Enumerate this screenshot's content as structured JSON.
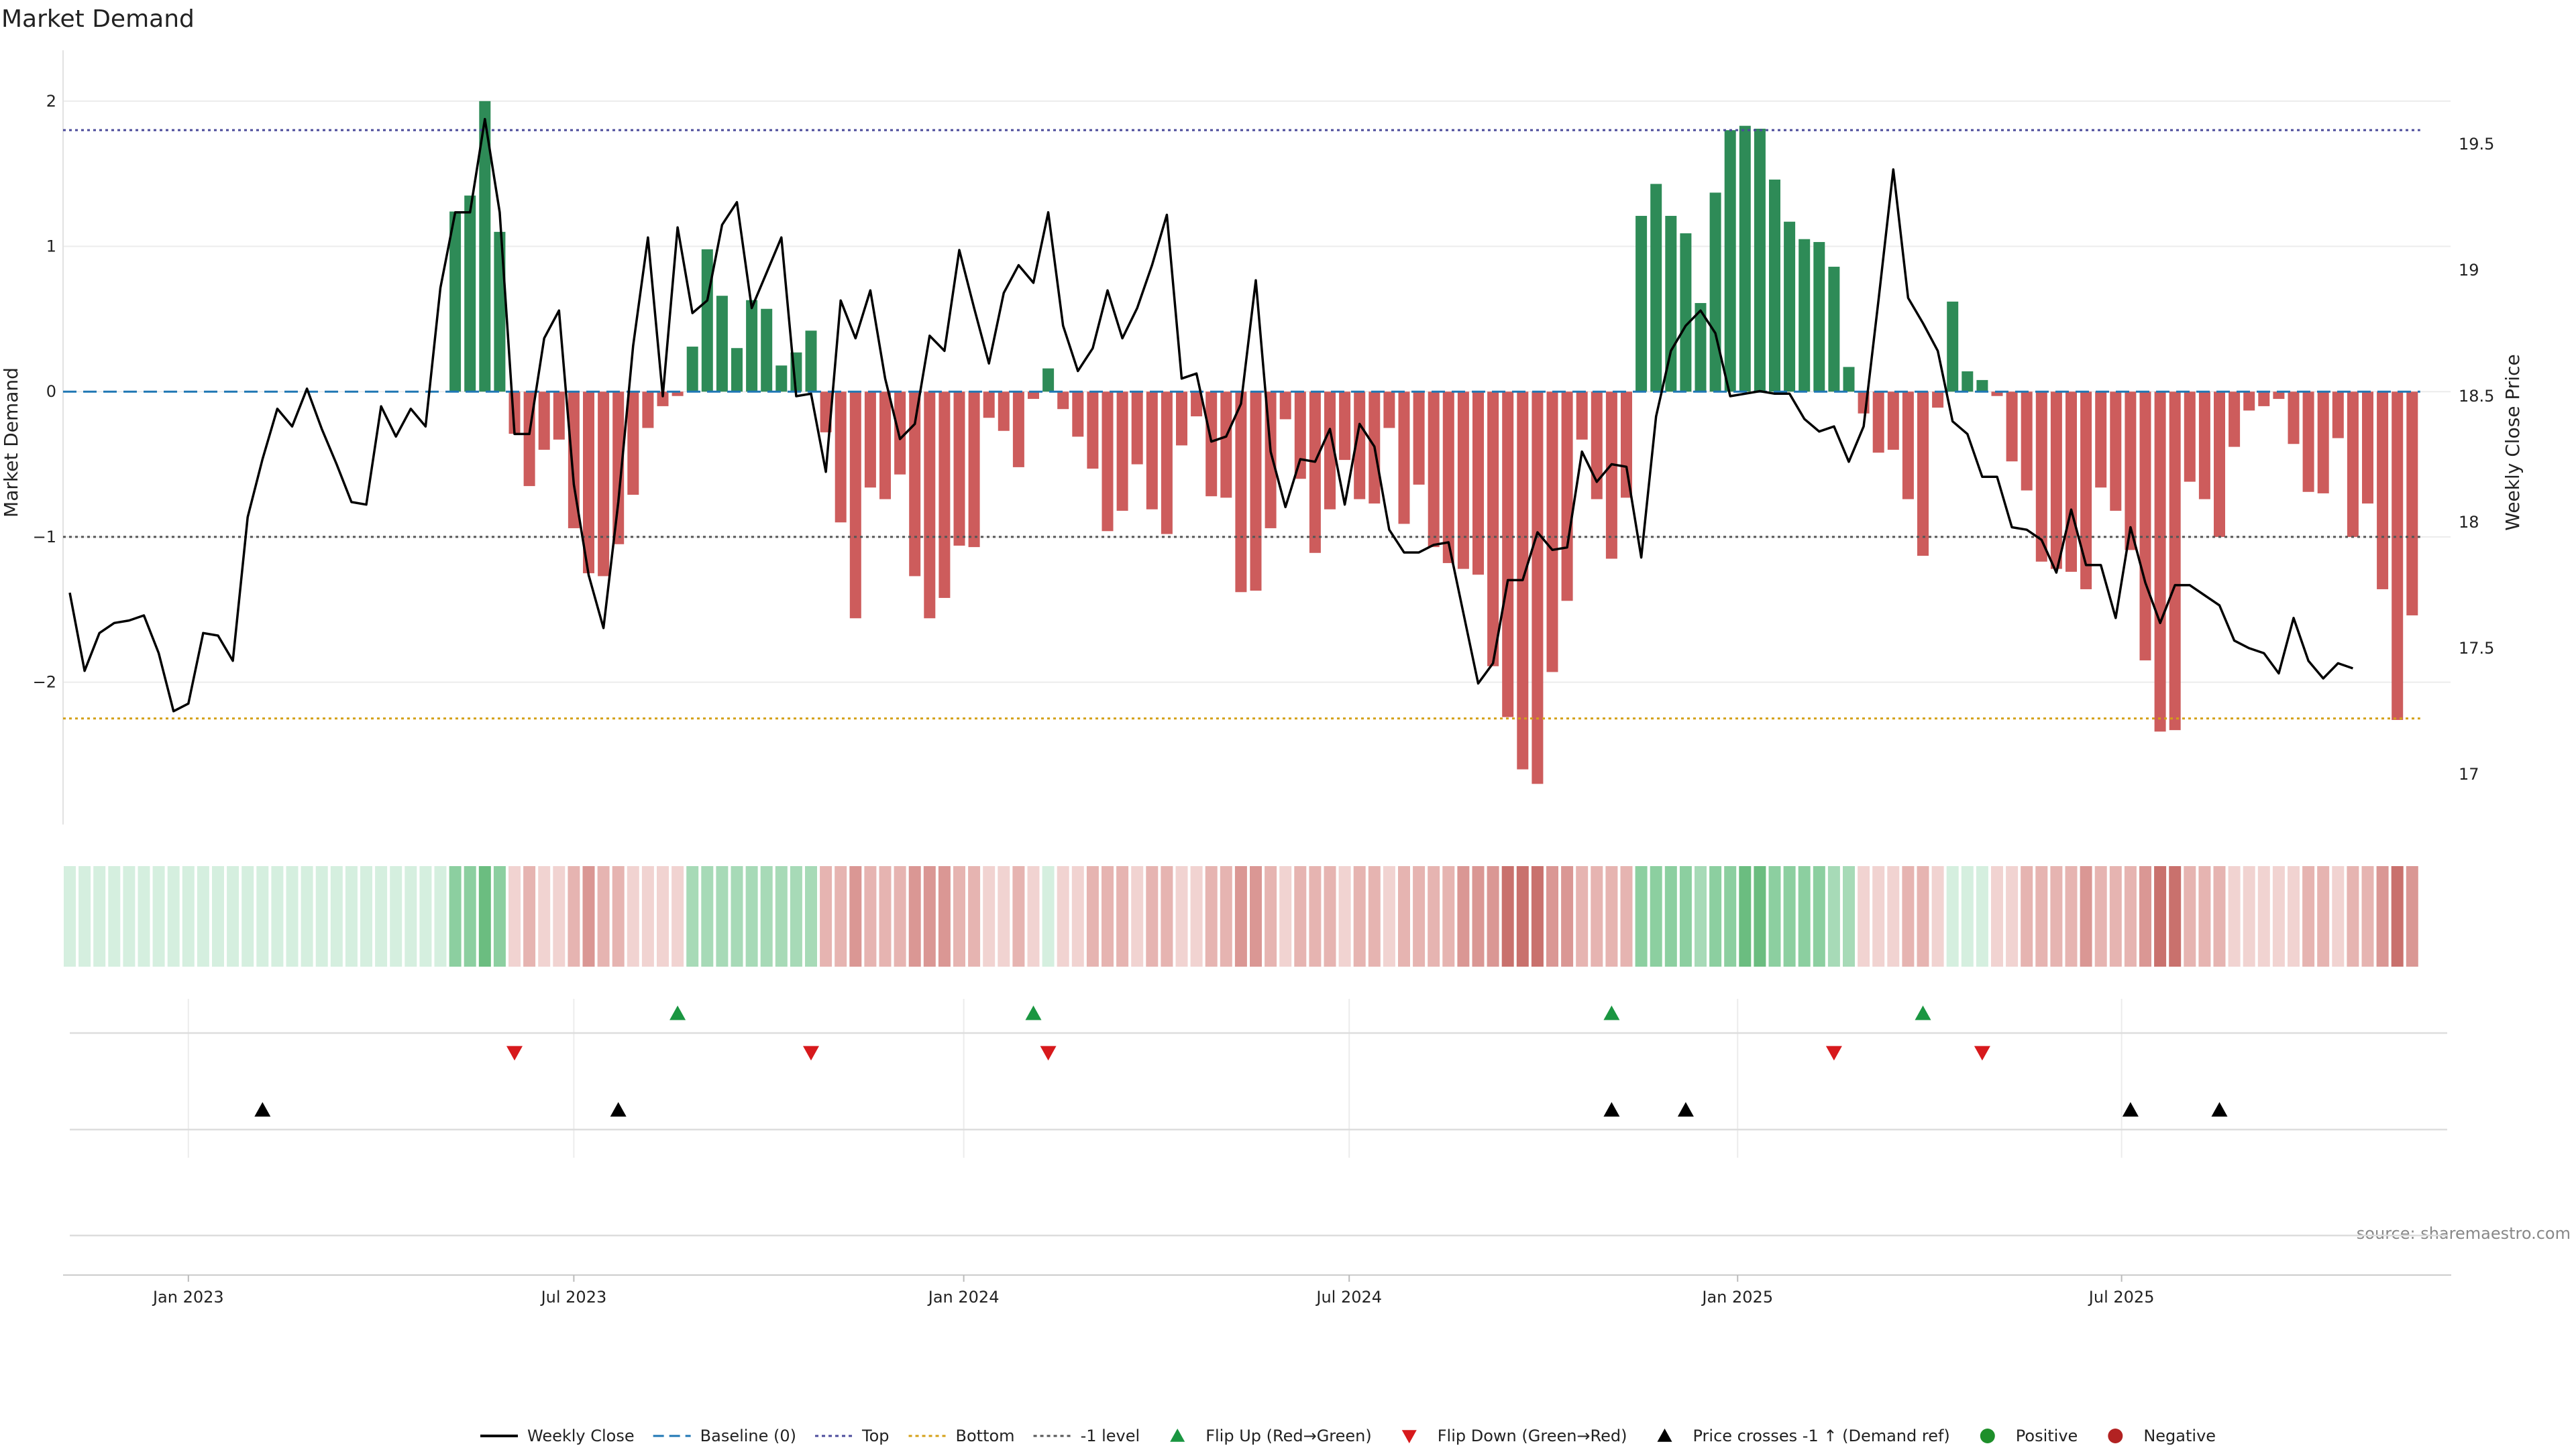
{
  "chart_data": {
    "type": "bar",
    "title": "Market Demand",
    "ylabel": "Market Demand",
    "y2label": "Weekly Close Price",
    "source": "source: sharemaestro.com",
    "ylim": [
      -2.98,
      2.05
    ],
    "y2lim": [
      16.8,
      19.7
    ],
    "yticks": [
      2,
      1,
      0,
      -1,
      -2
    ],
    "yticklabels": [
      "2",
      "1",
      "0",
      "−1",
      "−2"
    ],
    "y2ticks": [
      19.5,
      19,
      18.5,
      18,
      17.5,
      17
    ],
    "y2ticklabels": [
      "19.5",
      "19",
      "18.5",
      "18",
      "17.5",
      "17"
    ],
    "xticks": [
      {
        "label": "Jan 2023",
        "week": 8
      },
      {
        "label": "Jul 2023",
        "week": 34
      },
      {
        "label": "Jan 2024",
        "week": 60.3
      },
      {
        "label": "Jul 2024",
        "week": 86.3
      },
      {
        "label": "Jan 2025",
        "week": 112.5
      },
      {
        "label": "Jul 2025",
        "week": 138.4
      }
    ],
    "levels": {
      "baseline": 0,
      "top": 1.8,
      "bottom": -2.25,
      "minus_one": -1
    },
    "colors": {
      "positive": "#2e8b57",
      "negative": "#cd5c5c",
      "price": "#000000",
      "baseline": "#1f77b4",
      "top": "#4b4b9b",
      "bottom": "#d4a017",
      "minus_one": "#555555",
      "flip_up": "#1a9641",
      "flip_down": "#d7191c",
      "cross": "#000000",
      "legend_positive": "#1e8f2a",
      "legend_negative": "#b22222"
    },
    "demand": [
      0,
      0,
      0,
      0,
      0,
      0,
      0,
      0,
      0,
      0,
      0,
      0,
      0,
      0,
      0,
      0,
      0,
      0,
      0,
      0,
      0,
      0,
      0,
      0,
      0,
      0,
      1.24,
      1.35,
      2.0,
      1.1,
      -0.29,
      -0.65,
      -0.4,
      -0.33,
      -0.94,
      -1.25,
      -1.27,
      -1.05,
      -0.71,
      -0.25,
      -0.1,
      -0.03,
      0.31,
      0.98,
      0.66,
      0.3,
      0.63,
      0.57,
      0.18,
      0.27,
      0.42,
      -0.28,
      -0.9,
      -1.56,
      -0.66,
      -0.74,
      -0.57,
      -1.27,
      -1.56,
      -1.42,
      -1.06,
      -1.07,
      -0.18,
      -0.27,
      -0.52,
      -0.05,
      0.16,
      -0.12,
      -0.31,
      -0.53,
      -0.96,
      -0.82,
      -0.5,
      -0.81,
      -0.98,
      -0.37,
      -0.17,
      -0.72,
      -0.73,
      -1.38,
      -1.37,
      -0.94,
      -0.19,
      -0.6,
      -1.11,
      -0.81,
      -0.47,
      -0.74,
      -0.77,
      -0.25,
      -0.91,
      -0.64,
      -1.07,
      -1.18,
      -1.22,
      -1.26,
      -1.89,
      -2.24,
      -2.6,
      -2.7,
      -1.93,
      -1.44,
      -0.33,
      -0.74,
      -1.15,
      -0.73,
      1.21,
      1.43,
      1.21,
      1.09,
      0.61,
      1.37,
      1.8,
      1.83,
      1.81,
      1.46,
      1.17,
      1.05,
      1.03,
      0.86,
      0.17,
      -0.15,
      -0.42,
      -0.4,
      -0.74,
      -1.13,
      -0.11,
      0.62,
      0.14,
      0.08,
      -0.03,
      -0.48,
      -0.68,
      -1.17,
      -1.22,
      -1.24,
      -1.36,
      -0.66,
      -0.82,
      -1.09,
      -1.85,
      -2.34,
      -2.33,
      -0.62,
      -0.74,
      -1.0,
      -0.38,
      -0.13,
      -0.1,
      -0.05,
      -0.36,
      -0.69,
      -0.7,
      -0.32,
      -1.0,
      -0.77,
      -1.36,
      -2.26,
      -1.54
    ],
    "price": [
      17.72,
      17.41,
      17.56,
      17.6,
      17.61,
      17.63,
      17.48,
      17.25,
      17.28,
      17.56,
      17.55,
      17.45,
      18.02,
      18.25,
      18.45,
      18.38,
      18.53,
      18.37,
      18.23,
      18.08,
      18.07,
      18.46,
      18.34,
      18.45,
      18.38,
      18.93,
      19.23,
      19.23,
      19.6,
      19.23,
      18.35,
      18.35,
      18.73,
      18.84,
      18.15,
      17.79,
      17.58,
      18.08,
      18.7,
      19.13,
      18.5,
      19.17,
      18.83,
      18.88,
      19.18,
      19.27,
      18.85,
      18.99,
      19.13,
      18.5,
      18.51,
      18.2,
      18.88,
      18.73,
      18.92,
      18.57,
      18.33,
      18.39,
      18.74,
      18.68,
      19.08,
      18.85,
      18.63,
      18.91,
      19.02,
      18.95,
      19.23,
      18.78,
      18.6,
      18.69,
      18.92,
      18.73,
      18.85,
      19.02,
      19.22,
      18.57,
      18.59,
      18.32,
      18.34,
      18.47,
      18.96,
      18.28,
      18.06,
      18.25,
      18.24,
      18.37,
      18.07,
      18.39,
      18.3,
      17.97,
      17.88,
      17.88,
      17.91,
      17.92,
      17.64,
      17.36,
      17.44,
      17.77,
      17.77,
      17.96,
      17.89,
      17.9,
      18.28,
      18.16,
      18.23,
      18.22,
      17.86,
      18.42,
      18.68,
      18.78,
      18.84,
      18.75,
      18.5,
      18.51,
      18.52,
      18.51,
      18.51,
      18.41,
      18.36,
      18.38,
      18.24,
      18.38,
      18.88,
      19.4,
      18.89,
      18.79,
      18.68,
      18.4,
      18.35,
      18.18,
      18.18,
      17.98,
      17.97,
      17.93,
      17.8,
      18.05,
      17.83,
      17.83,
      17.62,
      17.98,
      17.76,
      17.6,
      17.75,
      17.75,
      17.71,
      17.67,
      17.53,
      17.5,
      17.48,
      17.4,
      17.62,
      17.45,
      17.38,
      17.44,
      17.42
    ],
    "heat": [
      1,
      1,
      1,
      1,
      1,
      1,
      1,
      1,
      1,
      1,
      1,
      1,
      1,
      1,
      1,
      1,
      1,
      1,
      1,
      1,
      1,
      1,
      1,
      1,
      1,
      1,
      3,
      3,
      4,
      3,
      -1,
      -2,
      -1,
      -1,
      -2,
      -3,
      -2,
      -2,
      -1,
      -1,
      -1,
      -1,
      2,
      2,
      2,
      2,
      2,
      2,
      2,
      2,
      2,
      -2,
      -2,
      -3,
      -2,
      -2,
      -2,
      -3,
      -3,
      -3,
      -2,
      -2,
      -1,
      -1,
      -2,
      -1,
      1,
      -1,
      -1,
      -2,
      -2,
      -2,
      -1,
      -2,
      -2,
      -1,
      -1,
      -2,
      -2,
      -3,
      -3,
      -2,
      -1,
      -2,
      -2,
      -2,
      -1,
      -2,
      -2,
      -1,
      -2,
      -2,
      -2,
      -2,
      -3,
      -3,
      -3,
      -4,
      -4,
      -4,
      -3,
      -3,
      -2,
      -2,
      -2,
      -2,
      3,
      3,
      3,
      3,
      2,
      3,
      3,
      4,
      4,
      3,
      3,
      3,
      3,
      2,
      2,
      -1,
      -1,
      -1,
      -2,
      -2,
      -1,
      1,
      1,
      1,
      -1,
      -1,
      -2,
      -2,
      -2,
      -2,
      -3,
      -2,
      -2,
      -2,
      -3,
      -4,
      -4,
      -2,
      -2,
      -2,
      -1,
      -1,
      -1,
      -1,
      -1,
      -2,
      -2,
      -1,
      -2,
      -2,
      -3,
      -4,
      -3
    ],
    "flip_up_weeks": [
      41,
      65,
      104,
      125
    ],
    "flip_down_weeks": [
      30,
      50,
      66,
      119,
      129
    ],
    "cross_weeks": [
      13,
      37,
      104,
      109,
      139,
      145
    ],
    "legend": [
      {
        "label": "Weekly Close",
        "kind": "line"
      },
      {
        "label": "Baseline (0)",
        "kind": "baseline"
      },
      {
        "label": "Top",
        "kind": "top"
      },
      {
        "label": "Bottom",
        "kind": "bottom"
      },
      {
        "label": "-1 level",
        "kind": "minus_one"
      },
      {
        "label": "Flip Up (Red→Green)",
        "kind": "flip_up"
      },
      {
        "label": "Flip Down (Green→Red)",
        "kind": "flip_down"
      },
      {
        "label": "Price crosses -1 ↑ (Demand ref)",
        "kind": "cross"
      },
      {
        "label": "Positive",
        "kind": "positive"
      },
      {
        "label": "Negative",
        "kind": "negative"
      }
    ]
  }
}
